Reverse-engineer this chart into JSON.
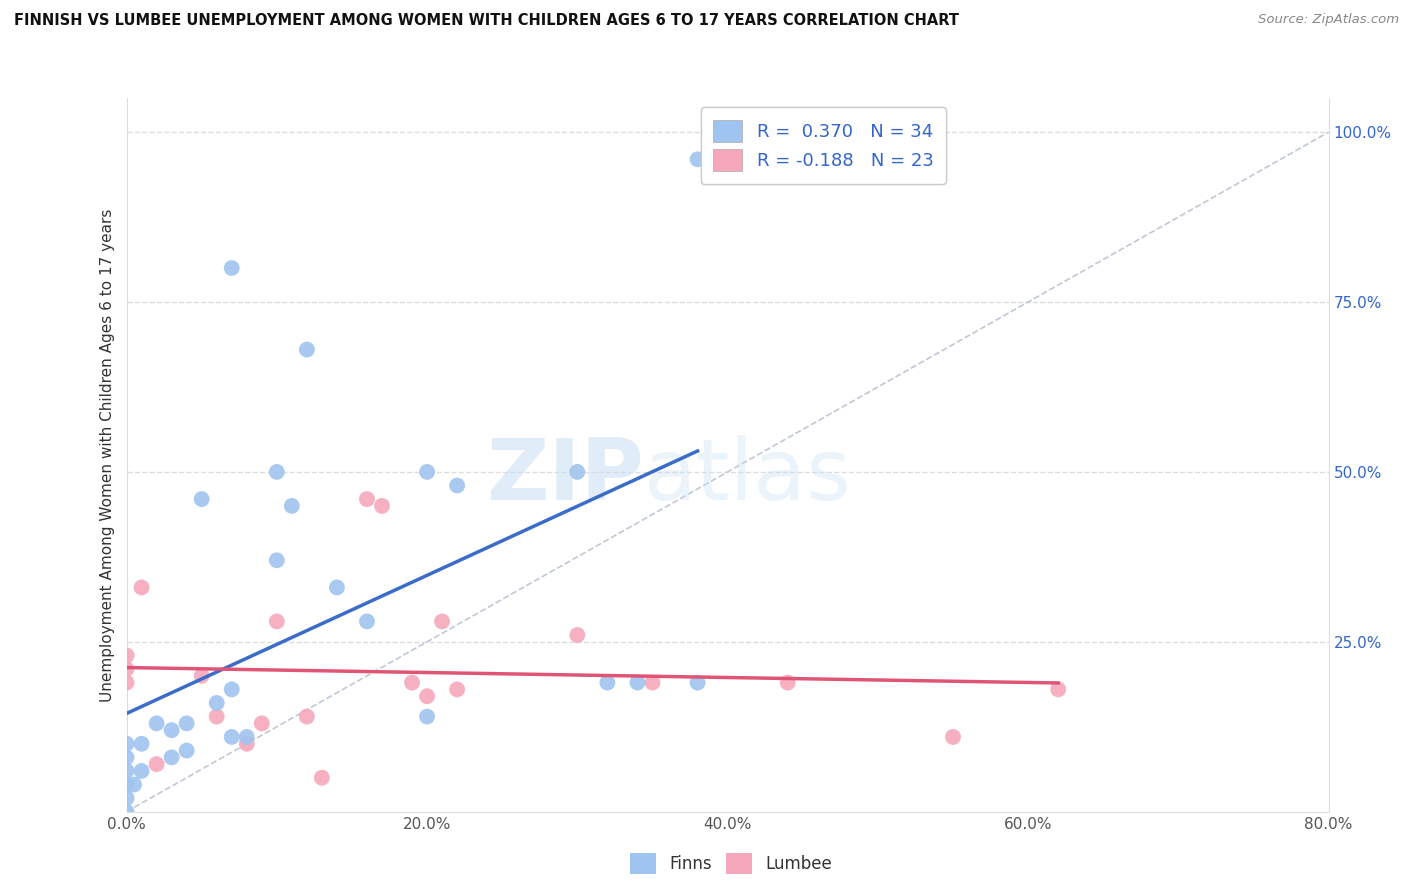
{
  "title": "FINNISH VS LUMBEE UNEMPLOYMENT AMONG WOMEN WITH CHILDREN AGES 6 TO 17 YEARS CORRELATION CHART",
  "source": "Source: ZipAtlas.com",
  "ylabel": "Unemployment Among Women with Children Ages 6 to 17 years",
  "watermark_left": "ZIP",
  "watermark_right": "atlas",
  "xlim": [
    0.0,
    0.8
  ],
  "ylim": [
    0.0,
    1.05
  ],
  "x_ticks": [
    0.0,
    0.2,
    0.4,
    0.6,
    0.8
  ],
  "x_tick_labels": [
    "0.0%",
    "20.0%",
    "40.0%",
    "60.0%",
    "80.0%"
  ],
  "y_ticks": [
    0.25,
    0.5,
    0.75,
    1.0
  ],
  "y_right_tick_labels": [
    "25.0%",
    "50.0%",
    "75.0%",
    "100.0%"
  ],
  "grid_color": "#dddddd",
  "background_color": "#ffffff",
  "finns_color": "#a0c4f0",
  "lumbee_color": "#f5a8bc",
  "finns_line_color": "#3a6cc8",
  "lumbee_line_color": "#e05575",
  "reference_line_color": "#c0c8d8",
  "finns_R": 0.37,
  "finns_N": 34,
  "lumbee_R": -0.188,
  "lumbee_N": 23,
  "legend_label_color": "#3366cc",
  "finns_x": [
    0.0,
    0.0,
    0.0,
    0.0,
    0.0,
    0.0,
    0.005,
    0.01,
    0.01,
    0.02,
    0.03,
    0.03,
    0.04,
    0.04,
    0.05,
    0.06,
    0.07,
    0.07,
    0.07,
    0.08,
    0.1,
    0.1,
    0.11,
    0.12,
    0.14,
    0.16,
    0.2,
    0.2,
    0.22,
    0.3,
    0.32,
    0.34,
    0.38,
    0.38
  ],
  "finns_y": [
    0.0,
    0.02,
    0.04,
    0.06,
    0.08,
    0.1,
    0.04,
    0.06,
    0.1,
    0.13,
    0.08,
    0.12,
    0.09,
    0.13,
    0.46,
    0.16,
    0.11,
    0.18,
    0.8,
    0.11,
    0.37,
    0.5,
    0.45,
    0.68,
    0.33,
    0.28,
    0.14,
    0.5,
    0.48,
    0.5,
    0.19,
    0.19,
    0.19,
    0.96
  ],
  "lumbee_x": [
    0.0,
    0.0,
    0.0,
    0.01,
    0.02,
    0.05,
    0.06,
    0.08,
    0.09,
    0.1,
    0.12,
    0.13,
    0.16,
    0.17,
    0.19,
    0.2,
    0.21,
    0.22,
    0.3,
    0.35,
    0.44,
    0.55,
    0.62
  ],
  "lumbee_y": [
    0.19,
    0.21,
    0.23,
    0.33,
    0.07,
    0.2,
    0.14,
    0.1,
    0.13,
    0.28,
    0.14,
    0.05,
    0.46,
    0.45,
    0.19,
    0.17,
    0.28,
    0.18,
    0.26,
    0.19,
    0.19,
    0.11,
    0.18
  ]
}
